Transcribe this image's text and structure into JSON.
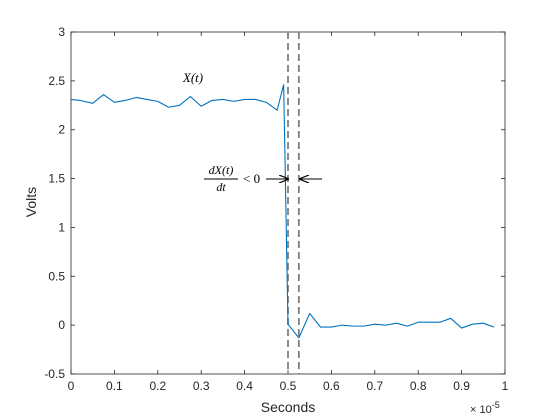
{
  "chart_data": {
    "type": "line",
    "xlabel": "Seconds",
    "ylabel": "Volts",
    "x_exponent_label": "× 10",
    "x_exponent_power": "-5",
    "xlim": [
      0,
      1
    ],
    "ylim": [
      -0.5,
      3
    ],
    "x_ticks": [
      "0",
      "0.1",
      "0.2",
      "0.3",
      "0.4",
      "0.5",
      "0.6",
      "0.7",
      "0.8",
      "0.9",
      "1"
    ],
    "y_ticks": [
      "-0.5",
      "0",
      "0.5",
      "1",
      "1.5",
      "2",
      "2.5",
      "3"
    ],
    "grid": false,
    "line_color": "#0072bd",
    "dashed_line_color": "#808080",
    "series": [
      {
        "x": [
          0.0,
          0.02,
          0.05,
          0.075,
          0.1,
          0.125,
          0.15,
          0.175,
          0.2,
          0.225,
          0.25,
          0.275,
          0.3,
          0.325,
          0.35,
          0.375,
          0.4,
          0.425,
          0.45,
          0.475,
          0.49,
          0.5,
          0.525,
          0.55,
          0.575,
          0.6,
          0.625,
          0.65,
          0.675,
          0.7,
          0.725,
          0.75,
          0.775,
          0.8,
          0.825,
          0.85,
          0.875,
          0.9,
          0.925,
          0.95,
          0.975
        ],
        "y": [
          2.31,
          2.3,
          2.27,
          2.36,
          2.28,
          2.3,
          2.33,
          2.31,
          2.29,
          2.23,
          2.25,
          2.34,
          2.24,
          2.3,
          2.31,
          2.29,
          2.31,
          2.31,
          2.28,
          2.2,
          2.46,
          0.01,
          -0.13,
          0.12,
          -0.02,
          -0.02,
          0.0,
          -0.01,
          -0.01,
          0.01,
          0.0,
          0.02,
          -0.01,
          0.03,
          0.03,
          0.03,
          0.07,
          -0.03,
          0.01,
          0.02,
          -0.02
        ]
      }
    ],
    "vertical_markers_x": [
      0.5,
      0.525
    ],
    "annotations": {
      "signal_label": "X(t)",
      "derivative_numerator": "dX(t)",
      "derivative_denominator": "dt",
      "derivative_relation": "< 0"
    }
  }
}
